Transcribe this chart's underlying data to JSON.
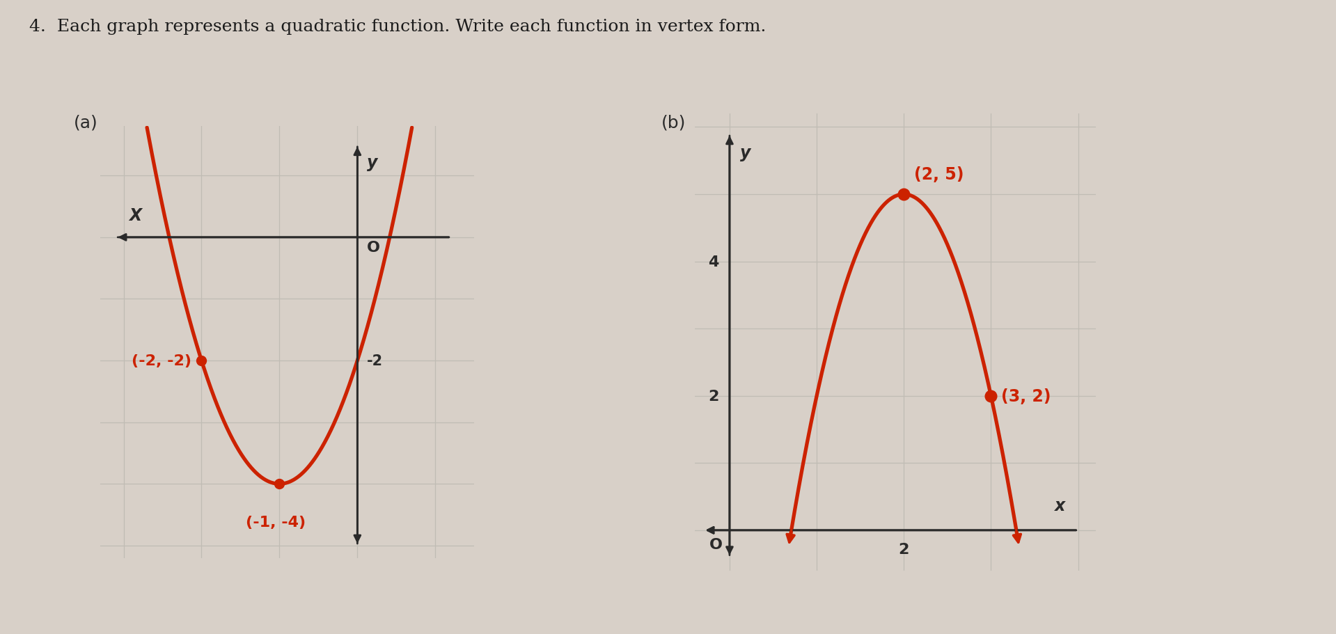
{
  "title": "4.  Each graph represents a quadratic function. Write each function in vertex form.",
  "title_fontsize": 18,
  "title_color": "#1a1a1a",
  "page_bg": "#d8d0c8",
  "graph_bg": "#e8e4de",
  "curve_color": "#cc2200",
  "axis_color": "#2a2a2a",
  "label_color": "#cc2200",
  "red_label_color": "#cc2200",
  "grid_color": "#c0bcb4",
  "graph_a_label": "(a)",
  "graph_b_label": "(b)",
  "a_xlim": [
    -3.3,
    1.5
  ],
  "a_ylim": [
    -5.2,
    1.8
  ],
  "a_x_label": "X",
  "a_y_label": "y",
  "a_O_label": "O",
  "a_tick_label": "-2",
  "a_vertex": [
    -1,
    -4
  ],
  "a_point": [
    -2,
    -2
  ],
  "a_vertex_label": "(-1, -4)",
  "a_point_label": "(-2, -2)",
  "b_xlim": [
    -0.4,
    4.2
  ],
  "b_ylim": [
    -0.6,
    6.2
  ],
  "b_x_label": "x",
  "b_y_label": "y",
  "b_O_label": "O",
  "b_4_label": "4",
  "b_2_label": "2",
  "b_x2_label": "2",
  "b_vertex": [
    2,
    5
  ],
  "b_point": [
    3,
    2
  ],
  "b_vertex_label": "(2, 5)",
  "b_point_label": "(3, 2)"
}
